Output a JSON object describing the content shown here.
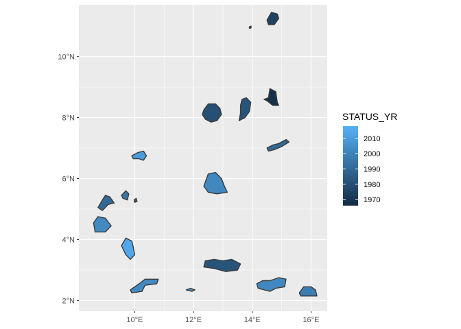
{
  "axes": {
    "x_ticks": [
      {
        "value": 10,
        "label": "10°E"
      },
      {
        "value": 12,
        "label": "12°E"
      },
      {
        "value": 14,
        "label": "14°E"
      },
      {
        "value": 16,
        "label": "16°E"
      }
    ],
    "y_ticks": [
      {
        "value": 2,
        "label": "2°N"
      },
      {
        "value": 4,
        "label": "4°N"
      },
      {
        "value": 6,
        "label": "6°N"
      },
      {
        "value": 8,
        "label": "8°N"
      },
      {
        "value": 10,
        "label": "10°N"
      }
    ],
    "x_range_deg_e": [
      8.1,
      16.55
    ],
    "y_range_deg_n": [
      1.65,
      11.7
    ],
    "grid": true,
    "background_color": "#ebebeb",
    "grid_color": "#ffffff"
  },
  "legend": {
    "title": "STATUS_YR",
    "placement": "right",
    "range": [
      1966,
      2018
    ],
    "color_low": "#132b43",
    "color_high": "#56b1f7",
    "breaks": [
      {
        "value": 2010,
        "label": "2010"
      },
      {
        "value": 2000,
        "label": "2000"
      },
      {
        "value": 1990,
        "label": "1990"
      },
      {
        "value": 1980,
        "label": "1980"
      },
      {
        "value": 1970,
        "label": "1970"
      }
    ]
  },
  "map_data": {
    "type": "choropleth",
    "fill_variable": "STATUS_YR",
    "border_color": "#3a3a3a",
    "areas": [
      {
        "id": "area-01",
        "year": 1975,
        "coords": [
          [
            14.5,
            11.2
          ],
          [
            14.65,
            11.45
          ],
          [
            14.85,
            11.4
          ],
          [
            14.9,
            11.25
          ],
          [
            14.75,
            11.05
          ],
          [
            14.55,
            11.05
          ]
        ]
      },
      {
        "id": "area-02",
        "year": 1985,
        "coords": [
          [
            13.9,
            10.98
          ],
          [
            13.96,
            11.0
          ],
          [
            13.96,
            10.94
          ],
          [
            13.9,
            10.93
          ]
        ]
      },
      {
        "id": "area-03",
        "year": 1968,
        "coords": [
          [
            14.4,
            8.6
          ],
          [
            14.55,
            8.65
          ],
          [
            14.6,
            8.95
          ],
          [
            14.8,
            8.85
          ],
          [
            14.85,
            8.5
          ],
          [
            14.9,
            8.4
          ],
          [
            14.7,
            8.4
          ],
          [
            14.5,
            8.55
          ]
        ]
      },
      {
        "id": "area-04",
        "year": 1980,
        "coords": [
          [
            12.35,
            8.25
          ],
          [
            12.5,
            8.45
          ],
          [
            12.75,
            8.45
          ],
          [
            12.9,
            8.3
          ],
          [
            12.95,
            8.1
          ],
          [
            12.8,
            7.9
          ],
          [
            12.6,
            7.85
          ],
          [
            12.4,
            7.95
          ],
          [
            12.3,
            8.1
          ]
        ]
      },
      {
        "id": "area-05",
        "year": 1982,
        "coords": [
          [
            13.65,
            8.6
          ],
          [
            13.8,
            8.65
          ],
          [
            13.95,
            8.5
          ],
          [
            13.9,
            8.2
          ],
          [
            13.75,
            8.0
          ],
          [
            13.55,
            7.9
          ],
          [
            13.6,
            8.15
          ],
          [
            13.6,
            8.4
          ]
        ]
      },
      {
        "id": "area-06",
        "year": 1990,
        "coords": [
          [
            14.5,
            7.0
          ],
          [
            14.7,
            7.1
          ],
          [
            14.9,
            7.15
          ],
          [
            15.15,
            7.28
          ],
          [
            15.25,
            7.2
          ],
          [
            15.0,
            7.05
          ],
          [
            14.75,
            6.95
          ],
          [
            14.55,
            6.9
          ]
        ]
      },
      {
        "id": "area-07",
        "year": 2010,
        "coords": [
          [
            9.9,
            6.75
          ],
          [
            10.1,
            6.85
          ],
          [
            10.3,
            6.9
          ],
          [
            10.4,
            6.75
          ],
          [
            10.3,
            6.6
          ],
          [
            10.15,
            6.65
          ],
          [
            9.95,
            6.65
          ]
        ]
      },
      {
        "id": "area-08",
        "year": 2002,
        "coords": [
          [
            12.35,
            5.75
          ],
          [
            12.5,
            6.15
          ],
          [
            12.75,
            6.2
          ],
          [
            12.95,
            6.0
          ],
          [
            13.05,
            5.75
          ],
          [
            13.15,
            5.55
          ],
          [
            12.8,
            5.5
          ],
          [
            12.5,
            5.55
          ]
        ]
      },
      {
        "id": "area-09",
        "year": 1990,
        "coords": [
          [
            8.75,
            5.05
          ],
          [
            8.9,
            5.3
          ],
          [
            9.0,
            5.45
          ],
          [
            9.15,
            5.4
          ],
          [
            9.3,
            5.2
          ],
          [
            9.1,
            5.15
          ],
          [
            8.9,
            4.95
          ]
        ]
      },
      {
        "id": "area-10",
        "year": 1995,
        "coords": [
          [
            9.55,
            5.45
          ],
          [
            9.7,
            5.6
          ],
          [
            9.8,
            5.5
          ],
          [
            9.75,
            5.3
          ],
          [
            9.6,
            5.35
          ]
        ]
      },
      {
        "id": "area-11",
        "year": 1985,
        "coords": [
          [
            9.98,
            5.3
          ],
          [
            10.05,
            5.35
          ],
          [
            10.08,
            5.25
          ],
          [
            10.0,
            5.22
          ]
        ]
      },
      {
        "id": "area-12",
        "year": 2003,
        "coords": [
          [
            8.6,
            4.55
          ],
          [
            8.75,
            4.75
          ],
          [
            9.0,
            4.7
          ],
          [
            9.2,
            4.45
          ],
          [
            9.0,
            4.25
          ],
          [
            8.65,
            4.25
          ]
        ]
      },
      {
        "id": "area-13",
        "year": 2014,
        "coords": [
          [
            9.55,
            3.8
          ],
          [
            9.7,
            4.05
          ],
          [
            9.9,
            3.95
          ],
          [
            9.95,
            3.75
          ],
          [
            10.0,
            3.5
          ],
          [
            9.85,
            3.35
          ],
          [
            9.7,
            3.5
          ]
        ]
      },
      {
        "id": "area-14",
        "year": 1982,
        "coords": [
          [
            12.4,
            3.3
          ],
          [
            12.7,
            3.35
          ],
          [
            13.0,
            3.3
          ],
          [
            13.3,
            3.35
          ],
          [
            13.6,
            3.2
          ],
          [
            13.5,
            3.0
          ],
          [
            13.1,
            2.95
          ],
          [
            12.7,
            3.05
          ],
          [
            12.35,
            3.1
          ]
        ]
      },
      {
        "id": "area-15",
        "year": 2003,
        "coords": [
          [
            10.15,
            2.55
          ],
          [
            10.35,
            2.7
          ],
          [
            10.8,
            2.7
          ],
          [
            10.75,
            2.55
          ],
          [
            10.35,
            2.5
          ],
          [
            10.25,
            2.3
          ],
          [
            9.9,
            2.25
          ],
          [
            9.85,
            2.35
          ]
        ]
      },
      {
        "id": "area-16",
        "year": 2005,
        "coords": [
          [
            11.75,
            2.35
          ],
          [
            11.9,
            2.4
          ],
          [
            12.05,
            2.35
          ],
          [
            11.95,
            2.3
          ]
        ]
      },
      {
        "id": "area-17",
        "year": 2002,
        "coords": [
          [
            14.15,
            2.55
          ],
          [
            14.35,
            2.65
          ],
          [
            14.6,
            2.65
          ],
          [
            14.9,
            2.75
          ],
          [
            15.15,
            2.7
          ],
          [
            15.1,
            2.45
          ],
          [
            14.8,
            2.4
          ],
          [
            14.6,
            2.3
          ],
          [
            14.2,
            2.4
          ]
        ]
      },
      {
        "id": "area-18",
        "year": 1998,
        "coords": [
          [
            15.6,
            2.25
          ],
          [
            15.75,
            2.45
          ],
          [
            16.0,
            2.45
          ],
          [
            16.15,
            2.35
          ],
          [
            16.2,
            2.15
          ],
          [
            15.9,
            2.15
          ],
          [
            15.65,
            2.15
          ]
        ]
      }
    ]
  }
}
